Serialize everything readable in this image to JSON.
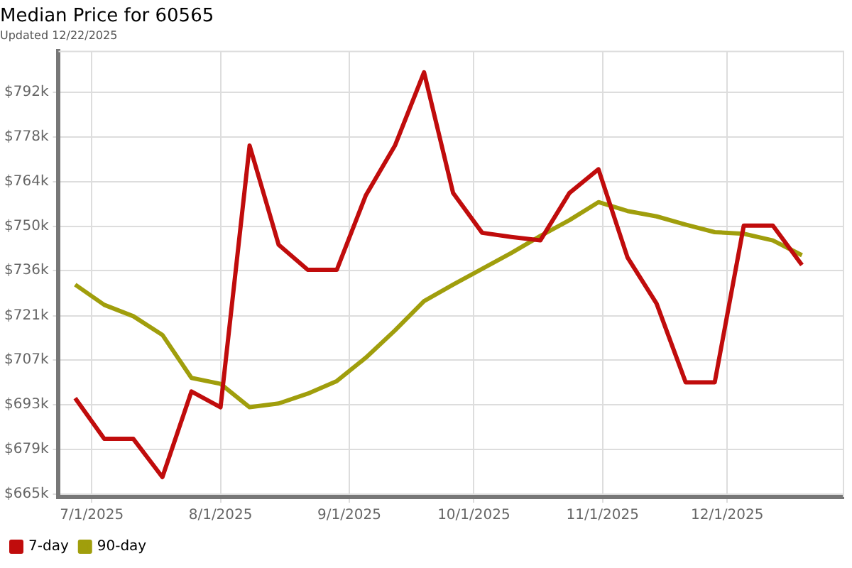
{
  "chart_data": {
    "type": "line",
    "title": "Median Price for 60565",
    "subtitle": "Updated 12/22/2025",
    "x": [
      "2025-06-27",
      "2025-07-04",
      "2025-07-11",
      "2025-07-18",
      "2025-07-25",
      "2025-08-01",
      "2025-08-08",
      "2025-08-15",
      "2025-08-22",
      "2025-08-29",
      "2025-09-05",
      "2025-09-12",
      "2025-09-19",
      "2025-09-26",
      "2025-10-03",
      "2025-10-10",
      "2025-10-17",
      "2025-10-24",
      "2025-10-31",
      "2025-11-07",
      "2025-11-14",
      "2025-11-21",
      "2025-11-28",
      "2025-12-05",
      "2025-12-12",
      "2025-12-19"
    ],
    "series": [
      {
        "name": "7-day",
        "color": "#c00c0c",
        "values": [
          695.3,
          682.4,
          682.4,
          670.3,
          697.4,
          692.4,
          775.2,
          743.8,
          735.9,
          735.9,
          759.5,
          775.2,
          798.4,
          760.2,
          747.6,
          746.3,
          745.2,
          760.2,
          767.7,
          739.8,
          725.2,
          700.3,
          700.3,
          749.9,
          749.9,
          737.4
        ]
      },
      {
        "name": "90-day",
        "color": "#a09e0c",
        "values": [
          731.2,
          724.8,
          721.2,
          715.3,
          701.7,
          699.8,
          692.4,
          693.6,
          696.7,
          700.7,
          708.1,
          716.7,
          726,
          731.2,
          736.2,
          741.2,
          746.6,
          751.6,
          757.3,
          754.5,
          752.8,
          750.2,
          747.8,
          747.3,
          745.2,
          740.5
        ]
      }
    ],
    "xlim": [
      "2025-06-23",
      "2025-12-29"
    ],
    "xticks": [
      {
        "value": "2025-07-01",
        "label": "7/1/2025"
      },
      {
        "value": "2025-08-01",
        "label": "8/1/2025"
      },
      {
        "value": "2025-09-01",
        "label": "9/1/2025"
      },
      {
        "value": "2025-10-01",
        "label": "10/1/2025"
      },
      {
        "value": "2025-11-01",
        "label": "11/1/2025"
      },
      {
        "value": "2025-12-01",
        "label": "12/1/2025"
      }
    ],
    "ylim": [
      664,
      805
    ],
    "yticks": [
      {
        "value": 665,
        "label": "$665k"
      },
      {
        "value": 679.1,
        "label": "$679k"
      },
      {
        "value": 693.2,
        "label": "$693k"
      },
      {
        "value": 707.3,
        "label": "$707k"
      },
      {
        "value": 721.4,
        "label": "$721k"
      },
      {
        "value": 735.6,
        "label": "$736k"
      },
      {
        "value": 749.7,
        "label": "$750k"
      },
      {
        "value": 763.8,
        "label": "$764k"
      },
      {
        "value": 777.9,
        "label": "$778k"
      },
      {
        "value": 792,
        "label": "$792k"
      }
    ],
    "grid": true,
    "legend": "bottom left",
    "marker": "none",
    "line_style": "solid"
  }
}
